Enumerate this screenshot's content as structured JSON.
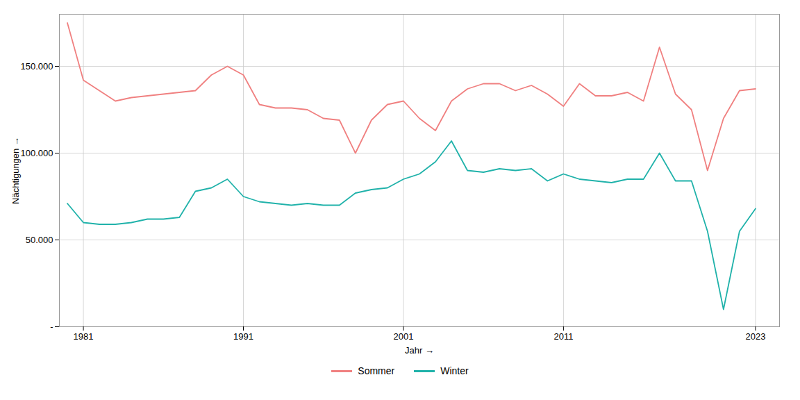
{
  "chart_data": {
    "type": "line",
    "xlabel": "Jahr",
    "ylabel": "Nächtigungen",
    "x": [
      1980,
      1981,
      1982,
      1983,
      1984,
      1985,
      1986,
      1987,
      1988,
      1989,
      1990,
      1991,
      1992,
      1993,
      1994,
      1995,
      1996,
      1997,
      1998,
      1999,
      2000,
      2001,
      2002,
      2003,
      2004,
      2005,
      2006,
      2007,
      2008,
      2009,
      2010,
      2011,
      2012,
      2013,
      2014,
      2015,
      2016,
      2017,
      2018,
      2019,
      2020,
      2021,
      2022,
      2023
    ],
    "series": [
      {
        "name": "Sommer",
        "color": "#F08080",
        "values": [
          175000,
          142000,
          136000,
          130000,
          132000,
          133000,
          134000,
          135000,
          136000,
          145000,
          150000,
          145000,
          128000,
          126000,
          126000,
          125000,
          120000,
          119000,
          100000,
          119000,
          128000,
          130000,
          120000,
          113000,
          130000,
          137000,
          140000,
          140000,
          136000,
          139000,
          134000,
          127000,
          140000,
          133000,
          133000,
          135000,
          130000,
          161000,
          134000,
          125000,
          90000,
          120000,
          136000,
          137000
        ]
      },
      {
        "name": "Winter",
        "color": "#20B2AA",
        "values": [
          71000,
          60000,
          59000,
          59000,
          60000,
          62000,
          62000,
          63000,
          78000,
          80000,
          85000,
          75000,
          72000,
          71000,
          70000,
          71000,
          70000,
          70000,
          77000,
          79000,
          80000,
          85000,
          88000,
          95000,
          107000,
          90000,
          89000,
          91000,
          90000,
          91000,
          84000,
          88000,
          85000,
          84000,
          83000,
          85000,
          85000,
          100000,
          84000,
          84000,
          55000,
          10000,
          55000,
          68000
        ]
      }
    ],
    "xlim": [
      1979.5,
      2024.5
    ],
    "xticks": [
      1981,
      1991,
      2001,
      2011,
      2023
    ],
    "ylim": [
      0,
      180000
    ],
    "yticks": [
      {
        "value": 0,
        "label": "-"
      },
      {
        "value": 50000,
        "label": "50.000"
      },
      {
        "value": 100000,
        "label": "100.000"
      },
      {
        "value": 150000,
        "label": "150.000"
      }
    ],
    "grid": true,
    "legend": "bottom"
  }
}
